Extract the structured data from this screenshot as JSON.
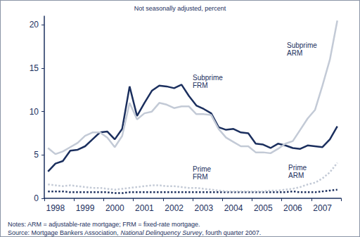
{
  "chart_data": {
    "type": "line",
    "title": "Not seasonally adjusted, percent",
    "categories": [
      null,
      "1998",
      null,
      null,
      null,
      "1999",
      null,
      null,
      null,
      "2000",
      null,
      null,
      null,
      "2001",
      null,
      null,
      null,
      "2002",
      null,
      null,
      null,
      "2003",
      null,
      null,
      null,
      "2004",
      null,
      null,
      null,
      "2005",
      null,
      null,
      null,
      "2006",
      null,
      null,
      null,
      "2007",
      null,
      null
    ],
    "series": [
      {
        "name": "Subprime FRM",
        "color": "#1b2f5e",
        "line_style": "solid",
        "marker": "none",
        "values": [
          3.1,
          4.0,
          4.3,
          5.5,
          5.6,
          6.0,
          6.8,
          7.6,
          7.7,
          6.8,
          8.0,
          12.9,
          9.5,
          11.0,
          12.4,
          13.0,
          12.9,
          12.7,
          13.1,
          11.8,
          10.7,
          10.3,
          9.8,
          8.2,
          7.9,
          8.0,
          7.6,
          7.5,
          6.3,
          6.2,
          5.8,
          6.3,
          6.1,
          5.8,
          5.7,
          6.1,
          6.0,
          5.9,
          6.8,
          8.3
        ]
      },
      {
        "name": "Subprime ARM",
        "color": "#c3cad6",
        "line_style": "solid",
        "marker": "none",
        "values": [
          5.8,
          5.1,
          5.4,
          5.9,
          6.4,
          7.2,
          7.6,
          7.6,
          7.0,
          5.9,
          7.2,
          11.0,
          9.1,
          9.8,
          10.0,
          11.0,
          10.8,
          10.4,
          10.6,
          10.6,
          9.7,
          9.7,
          9.6,
          8.0,
          7.0,
          6.5,
          6.0,
          6.0,
          5.3,
          5.3,
          5.2,
          5.7,
          6.3,
          6.6,
          7.9,
          9.2,
          10.2,
          13.0,
          16.0,
          20.5
        ]
      },
      {
        "name": "Prime FRM",
        "color": "#1b2f5e",
        "line_style": "dotted",
        "marker": "none",
        "values": [
          0.8,
          0.8,
          0.8,
          0.7,
          0.7,
          0.7,
          0.7,
          0.7,
          0.7,
          0.6,
          0.6,
          0.7,
          0.7,
          0.7,
          0.7,
          0.7,
          0.7,
          0.7,
          0.7,
          0.7,
          0.7,
          0.7,
          0.7,
          0.7,
          0.7,
          0.7,
          0.7,
          0.7,
          0.7,
          0.7,
          0.7,
          0.7,
          0.7,
          0.8,
          0.7,
          0.7,
          0.7,
          0.8,
          0.9,
          1.0
        ]
      },
      {
        "name": "Prime ARM",
        "color": "#c3cad6",
        "line_style": "dotted",
        "marker": "none",
        "values": [
          1.6,
          1.5,
          1.4,
          1.5,
          1.4,
          1.3,
          1.2,
          1.2,
          1.1,
          1.0,
          1.1,
          1.2,
          1.3,
          1.4,
          1.5,
          1.5,
          1.4,
          1.4,
          1.3,
          1.2,
          1.2,
          1.1,
          1.0,
          0.9,
          0.8,
          0.8,
          0.8,
          0.8,
          0.8,
          0.8,
          0.9,
          0.9,
          1.0,
          1.1,
          1.3,
          1.6,
          1.8,
          2.3,
          3.0,
          4.1
        ]
      }
    ],
    "ylim": [
      0,
      21
    ],
    "yticks": [
      0,
      5,
      10,
      15,
      20
    ],
    "grid": false,
    "notes": "Notes: ARM = adjustable-rate mortgage; FRM = fixed-rate mortgage.",
    "source": [
      "Source: Mortgage Bankers Association, ",
      "National Delinquency Survey",
      ", fourth quarter 2007."
    ]
  }
}
